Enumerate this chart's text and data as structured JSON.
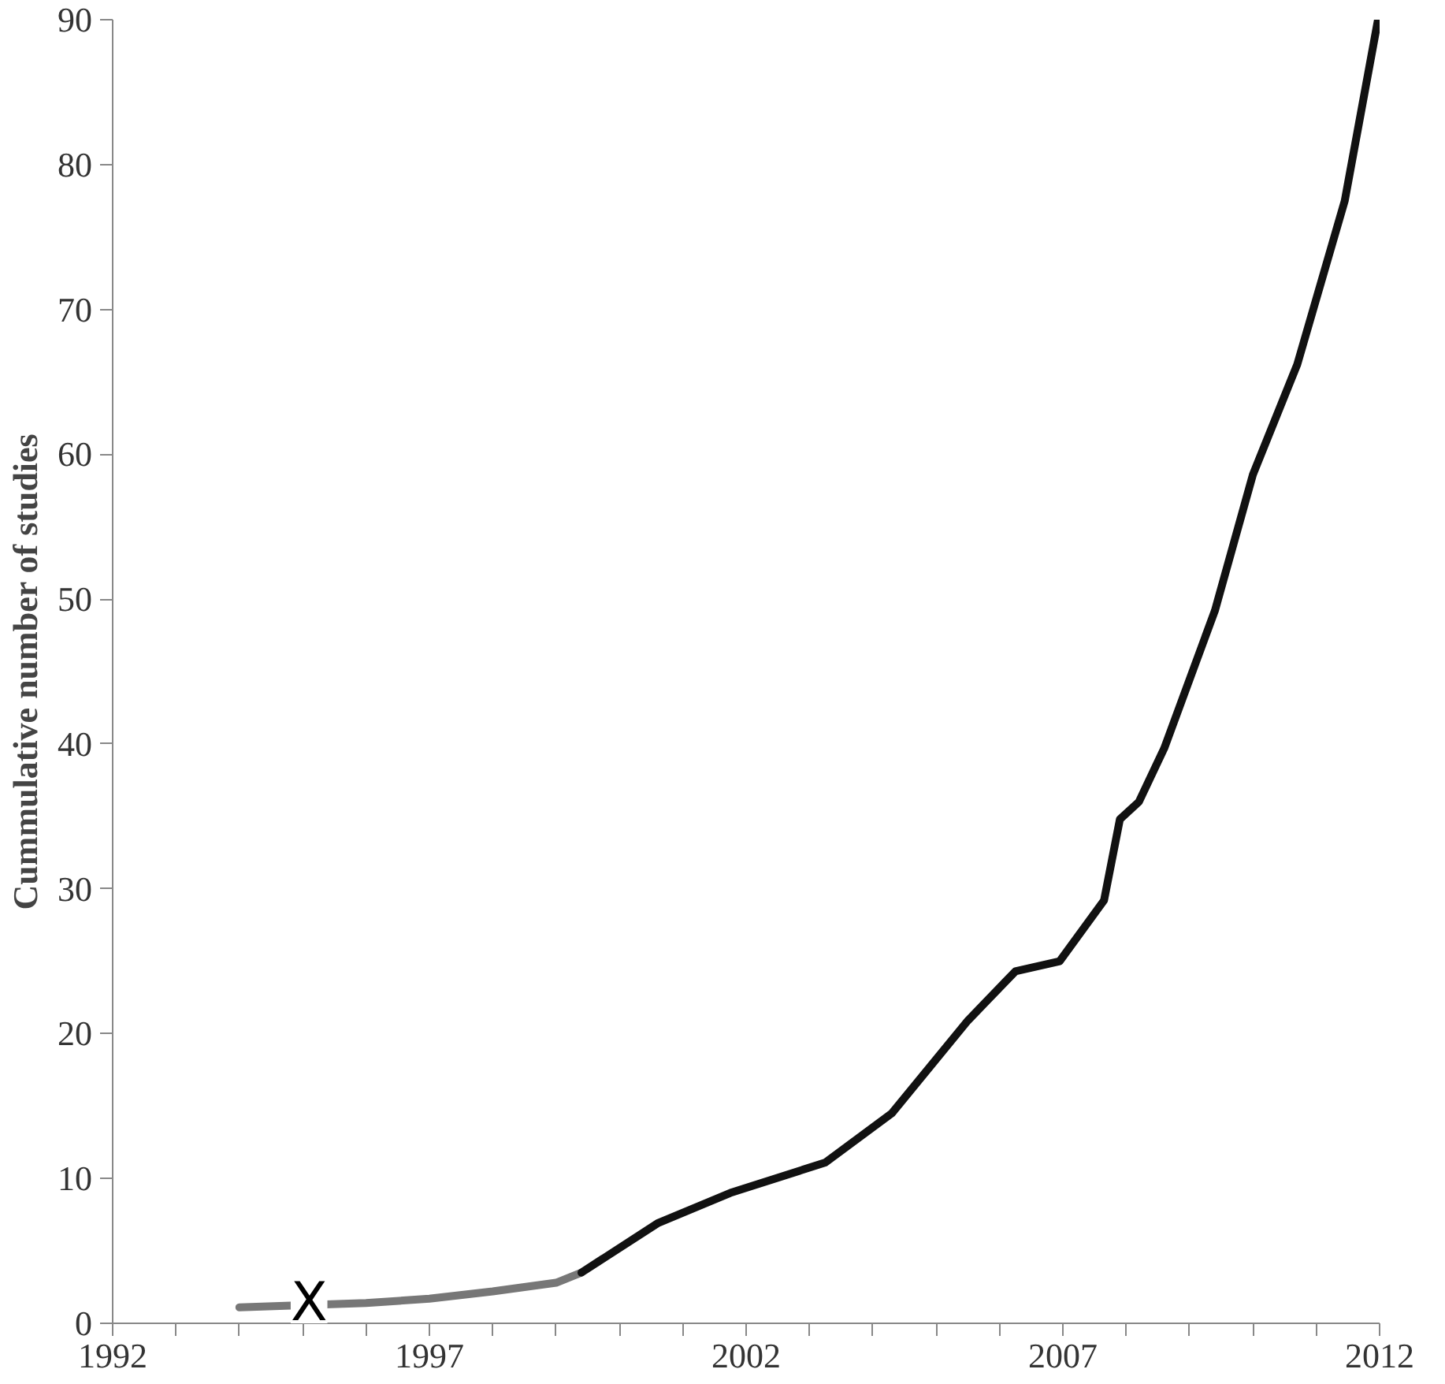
{
  "chart_data": {
    "type": "line",
    "ylabel": "Cummulative number of studies",
    "series": [
      {
        "color": "#777777",
        "x": [
          1994,
          1996,
          1997,
          1998,
          1999,
          1999.4
        ],
        "values": [
          1.1,
          1.4,
          1.7,
          2.2,
          2.8,
          3.5
        ]
      },
      {
        "color": "#111111",
        "x": [
          1999.4,
          2000.6,
          2001.75,
          2003.25,
          2004.3,
          2005.5,
          2006.25,
          2006.95,
          2007.65,
          2007.9,
          2008.2,
          2008.6,
          2009.4,
          2010.0,
          2010.7,
          2011.45,
          2011.97
        ],
        "values": [
          3.5,
          6.9,
          9.0,
          11.1,
          14.5,
          20.9,
          24.3,
          25.0,
          29.2,
          34.8,
          36.0,
          39.7,
          49.2,
          58.6,
          66.2,
          77.5,
          89.9
        ]
      }
    ],
    "annotations": [
      {
        "text": "X",
        "x": 1995.1,
        "y": 1.4
      }
    ],
    "xlim": [
      1992,
      2012
    ],
    "ylim": [
      0,
      90
    ],
    "xticks": [
      1992,
      {
        "value": 1993,
        "label": null
      },
      {
        "value": 1994,
        "label": null
      },
      {
        "value": 1995,
        "label": null
      },
      {
        "value": 1996,
        "label": null
      },
      1997,
      {
        "value": 1998,
        "label": null
      },
      {
        "value": 1999,
        "label": null
      },
      {
        "value": 2000,
        "label": null
      },
      {
        "value": 2001,
        "label": null
      },
      2002,
      {
        "value": 2003,
        "label": null
      },
      {
        "value": 2004,
        "label": null
      },
      {
        "value": 2005,
        "label": null
      },
      {
        "value": 2006,
        "label": null
      },
      2007,
      {
        "value": 2008,
        "label": null
      },
      {
        "value": 2009,
        "label": null
      },
      {
        "value": 2010,
        "label": null
      },
      {
        "value": 2011,
        "label": null
      },
      2012
    ],
    "yticks": [
      0,
      10,
      20,
      30,
      40,
      50,
      60,
      70,
      80,
      90
    ],
    "grid": false,
    "marker": "none",
    "line_style": "solid"
  }
}
